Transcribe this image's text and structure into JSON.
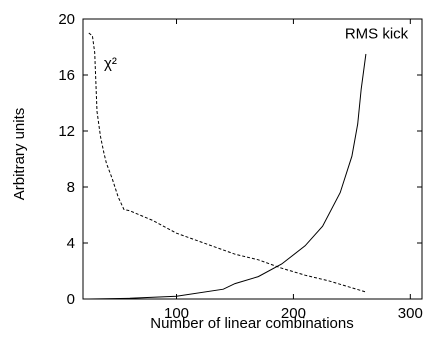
{
  "chart_data": {
    "type": "line",
    "title": "",
    "xlabel": "Number of linear combinations",
    "ylabel": "Arbitrary units",
    "xlim": [
      20,
      310
    ],
    "ylim": [
      0,
      20
    ],
    "x_ticks": [
      100,
      200,
      300
    ],
    "y_ticks": [
      0,
      4,
      8,
      12,
      16,
      20
    ],
    "grid": false,
    "legend": "none",
    "series": [
      {
        "style": "dashed",
        "color": "#000000",
        "points": [
          [
            25,
            19
          ],
          [
            28,
            18.8
          ],
          [
            30,
            17.6
          ],
          [
            32,
            13.4
          ],
          [
            35,
            11.6
          ],
          [
            38,
            10.4
          ],
          [
            40,
            9.7
          ],
          [
            45,
            8.6
          ],
          [
            50,
            7.3
          ],
          [
            55,
            6.4
          ],
          [
            60,
            6.3
          ],
          [
            80,
            5.6
          ],
          [
            100,
            4.7
          ],
          [
            130,
            3.8
          ],
          [
            150,
            3.2
          ],
          [
            170,
            2.8
          ],
          [
            190,
            2.2
          ],
          [
            210,
            1.7
          ],
          [
            230,
            1.3
          ],
          [
            250,
            0.8
          ],
          [
            262,
            0.5
          ]
        ]
      },
      {
        "style": "solid",
        "color": "#000000",
        "points": [
          [
            25,
            0
          ],
          [
            60,
            0.05
          ],
          [
            100,
            0.2
          ],
          [
            140,
            0.7
          ],
          [
            150,
            1.1
          ],
          [
            170,
            1.6
          ],
          [
            190,
            2.5
          ],
          [
            210,
            3.8
          ],
          [
            225,
            5.2
          ],
          [
            240,
            7.6
          ],
          [
            250,
            10.2
          ],
          [
            255,
            12.5
          ],
          [
            258,
            15.0
          ],
          [
            262,
            17.5
          ]
        ]
      }
    ],
    "annotations": [
      {
        "text": "χ²",
        "x": 38,
        "y": 16.5
      },
      {
        "text": "RMS kick",
        "x": 244,
        "y": 18.6
      }
    ]
  }
}
